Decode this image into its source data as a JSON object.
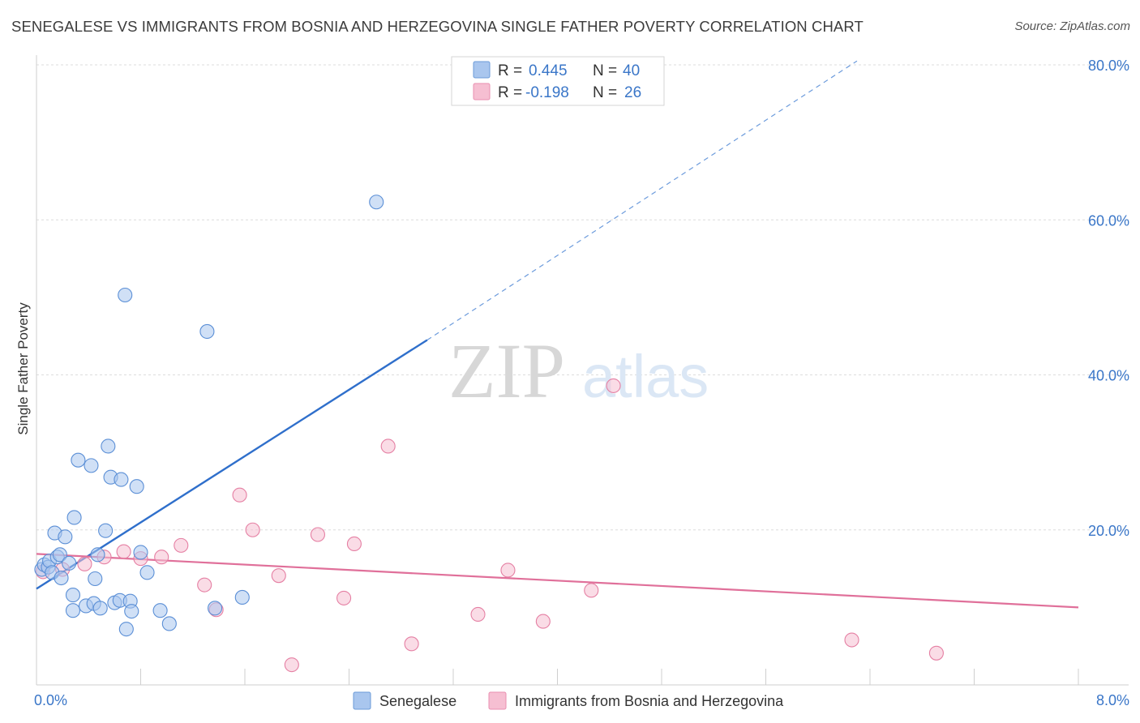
{
  "header": {
    "title": "SENEGALESE VS IMMIGRANTS FROM BOSNIA AND HERZEGOVINA SINGLE FATHER POVERTY CORRELATION CHART",
    "source": "Source: ZipAtlas.com"
  },
  "watermark": {
    "zip": "ZIP",
    "atlas": "atlas"
  },
  "stats": [
    {
      "r_label": "R =",
      "r_value": "0.445",
      "n_label": "N =",
      "n_value": "40"
    },
    {
      "r_label": "R =",
      "r_value": "-0.198",
      "n_label": "N =",
      "n_value": "26"
    }
  ],
  "chart_data": {
    "type": "scatter",
    "xlabel": "",
    "ylabel": "Single Father Poverty",
    "xlim": [
      0,
      8.0
    ],
    "ylim": [
      0,
      80
    ],
    "x_tick_labels": [
      {
        "value": 0,
        "label": "0.0%"
      },
      {
        "value": 8.0,
        "label": "8.0%"
      }
    ],
    "y_tick_labels": [
      {
        "value": 20,
        "label": "20.0%"
      },
      {
        "value": 40,
        "label": "40.0%"
      },
      {
        "value": 60,
        "label": "60.0%"
      },
      {
        "value": 80,
        "label": "80.0%"
      }
    ],
    "grid": true,
    "legend_position": "bottom-center",
    "series": [
      {
        "name": "Senegalese",
        "color": "#5b8fd6",
        "fill": "#a9c6ee",
        "r": 0.445,
        "n": 40,
        "trend": {
          "x": [
            0,
            3.0
          ],
          "y": [
            12.4,
            44.5
          ],
          "extended_to": [
            6.3,
            80.5
          ]
        },
        "points": [
          [
            0.04,
            14.9
          ],
          [
            0.06,
            15.5
          ],
          [
            0.09,
            15.2
          ],
          [
            0.1,
            16.0
          ],
          [
            0.12,
            14.5
          ],
          [
            0.14,
            19.6
          ],
          [
            0.16,
            16.5
          ],
          [
            0.18,
            16.8
          ],
          [
            0.19,
            13.8
          ],
          [
            0.22,
            19.1
          ],
          [
            0.25,
            15.7
          ],
          [
            0.29,
            21.6
          ],
          [
            0.28,
            11.6
          ],
          [
            0.32,
            29.0
          ],
          [
            0.28,
            9.6
          ],
          [
            0.38,
            10.2
          ],
          [
            0.42,
            28.3
          ],
          [
            0.44,
            10.5
          ],
          [
            0.45,
            13.7
          ],
          [
            0.47,
            16.8
          ],
          [
            0.49,
            9.9
          ],
          [
            0.53,
            19.9
          ],
          [
            0.55,
            30.8
          ],
          [
            0.57,
            26.8
          ],
          [
            0.6,
            10.6
          ],
          [
            0.64,
            10.9
          ],
          [
            0.65,
            26.5
          ],
          [
            0.68,
            50.3
          ],
          [
            0.69,
            7.2
          ],
          [
            0.72,
            10.8
          ],
          [
            0.73,
            9.5
          ],
          [
            0.77,
            25.6
          ],
          [
            0.8,
            17.1
          ],
          [
            0.85,
            14.5
          ],
          [
            0.95,
            9.6
          ],
          [
            1.02,
            7.9
          ],
          [
            1.31,
            45.6
          ],
          [
            1.37,
            9.9
          ],
          [
            1.58,
            11.3
          ],
          [
            2.61,
            62.3
          ]
        ]
      },
      {
        "name": "Immigrants from Bosnia and Herzegovina",
        "color": "#e57fa3",
        "fill": "#f6bfd2",
        "r": -0.198,
        "n": 26,
        "trend": {
          "x": [
            0,
            8.0
          ],
          "y": [
            16.9,
            10.0
          ]
        },
        "points": [
          [
            0.05,
            14.6
          ],
          [
            0.2,
            14.9
          ],
          [
            0.37,
            15.6
          ],
          [
            0.52,
            16.5
          ],
          [
            0.67,
            17.2
          ],
          [
            0.8,
            16.3
          ],
          [
            0.96,
            16.5
          ],
          [
            1.11,
            18.0
          ],
          [
            1.29,
            12.9
          ],
          [
            1.38,
            9.7
          ],
          [
            1.56,
            24.5
          ],
          [
            1.66,
            20.0
          ],
          [
            1.86,
            14.1
          ],
          [
            1.96,
            2.6
          ],
          [
            2.16,
            19.4
          ],
          [
            2.36,
            11.2
          ],
          [
            2.44,
            18.2
          ],
          [
            2.7,
            30.8
          ],
          [
            2.88,
            5.3
          ],
          [
            3.39,
            9.1
          ],
          [
            3.62,
            14.8
          ],
          [
            3.89,
            8.2
          ],
          [
            4.26,
            12.2
          ],
          [
            4.43,
            38.6
          ],
          [
            6.26,
            5.8
          ],
          [
            6.91,
            4.1
          ]
        ]
      }
    ]
  }
}
